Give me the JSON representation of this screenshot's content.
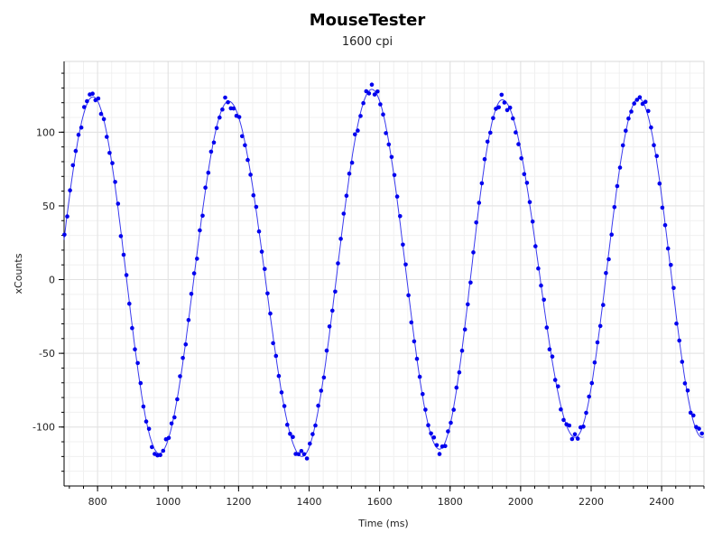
{
  "chart_data": {
    "type": "scatter",
    "title": "MouseTester",
    "subtitle": "1600 cpi",
    "xlabel": "Time (ms)",
    "ylabel": "xCounts",
    "xlim": [
      705,
      2520
    ],
    "ylim": [
      -140,
      148
    ],
    "x_ticks": [
      800,
      1000,
      1200,
      1400,
      1600,
      1800,
      2000,
      2200,
      2400
    ],
    "y_ticks": [
      -100,
      -50,
      0,
      50,
      100
    ],
    "grid": true,
    "marker_color": "#0000ee",
    "line_color": "#3a3aee",
    "series": [
      {
        "wave": {
          "peaks": [
            {
              "x": 787,
              "y": 124
            },
            {
              "x": 1172,
              "y": 121
            },
            {
              "x": 1578,
              "y": 129
            },
            {
              "x": 1948,
              "y": 122
            },
            {
              "x": 2335,
              "y": 123
            }
          ],
          "troughs": [
            {
              "x": 975,
              "y": -118
            },
            {
              "x": 1380,
              "y": -120
            },
            {
              "x": 1770,
              "y": -115
            },
            {
              "x": 2155,
              "y": -107
            }
          ],
          "start": {
            "x": 705,
            "y": 40
          },
          "end": {
            "x": 2520,
            "y": -122
          }
        },
        "sample_interval_ms": 8
      }
    ]
  }
}
